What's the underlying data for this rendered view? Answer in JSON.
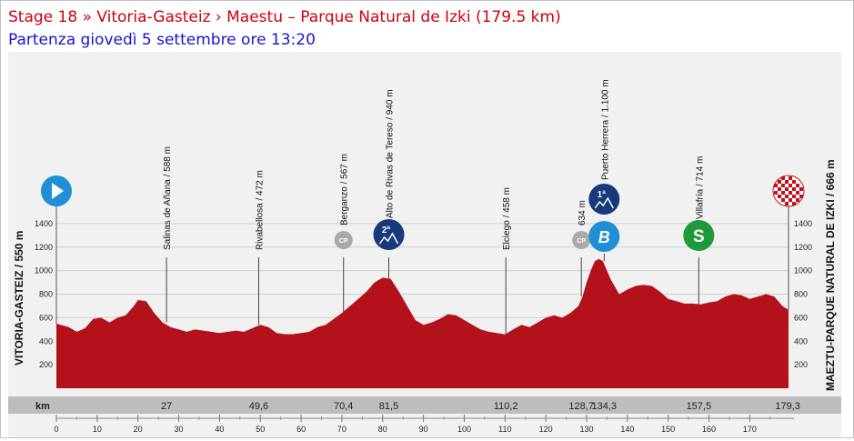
{
  "header": {
    "title": "Stage 18 » Vitoria-Gasteiz › Maestu – Parque Natural de Izki (179.5 km)",
    "subtitle": "Partenza giovedì 5 settembre ore 13:20"
  },
  "colors": {
    "title": "#d0000f",
    "subtitle": "#1a14cc",
    "profile_fill": "#b3121a",
    "profile_dark": "#8c0d14",
    "axis_bar": "#bdbdbd",
    "start_icon": "#1f8fd6",
    "cat1_icon": "#173a7a",
    "cat2_icon": "#173a7a",
    "bonus_icon": "#1f8fd6",
    "sprint_icon": "#1e9a3a",
    "cp_icon": "#a9a9a9"
  },
  "chart_data": {
    "type": "area",
    "xlabel": "km",
    "ylim": [
      0,
      1500
    ],
    "xlim": [
      0,
      179.5
    ],
    "yticks": [
      200,
      400,
      600,
      800,
      1000,
      1200,
      1400
    ],
    "xticks": [
      0,
      10,
      20,
      30,
      40,
      50,
      60,
      70,
      80,
      90,
      100,
      110,
      120,
      130,
      140,
      150,
      160,
      170
    ],
    "start_label": "VITORIA-GASTEIZ / 550 m",
    "finish_label": "MAEZTU-PARQUE NATURAL DE IZKI / 666 m",
    "profile": {
      "x": [
        0,
        3,
        5,
        7,
        9,
        11,
        13,
        15,
        17,
        19,
        20,
        22,
        24,
        26,
        28,
        30,
        32,
        34,
        36,
        38,
        40,
        42,
        44,
        46,
        48,
        50,
        52,
        54,
        56,
        58,
        60,
        62,
        64,
        66,
        68,
        70,
        72,
        74,
        76,
        78,
        80,
        82,
        84,
        86,
        88,
        90,
        92,
        94,
        96,
        98,
        100,
        102,
        104,
        106,
        108,
        110,
        112,
        114,
        116,
        118,
        120,
        122,
        124,
        126,
        128,
        129,
        130,
        131,
        132,
        133,
        134,
        135,
        136,
        137,
        138,
        140,
        142,
        144,
        146,
        148,
        150,
        152,
        154,
        156,
        158,
        160,
        162,
        164,
        166,
        168,
        170,
        172,
        174,
        176,
        178,
        179.5
      ],
      "y": [
        550,
        520,
        480,
        510,
        590,
        600,
        560,
        600,
        620,
        700,
        750,
        740,
        640,
        560,
        520,
        500,
        480,
        500,
        490,
        480,
        470,
        480,
        490,
        480,
        510,
        540,
        520,
        470,
        460,
        460,
        470,
        480,
        520,
        540,
        590,
        640,
        700,
        760,
        820,
        900,
        940,
        930,
        820,
        700,
        580,
        540,
        560,
        590,
        630,
        620,
        580,
        540,
        500,
        480,
        470,
        458,
        500,
        540,
        520,
        560,
        600,
        620,
        600,
        640,
        700,
        780,
        900,
        1000,
        1080,
        1100,
        1080,
        1000,
        920,
        860,
        800,
        840,
        870,
        880,
        870,
        820,
        760,
        740,
        720,
        720,
        714,
        730,
        740,
        780,
        800,
        790,
        760,
        780,
        800,
        780,
        700,
        666
      ]
    },
    "points": [
      {
        "km": 27,
        "km_label": "27",
        "name": "Salinas de Añana / 588 m",
        "icon": "none"
      },
      {
        "km": 49.6,
        "km_label": "49,6",
        "name": "Rivabellosa / 472 m",
        "icon": "none"
      },
      {
        "km": 70.4,
        "km_label": "70,4",
        "name": "Berganzo / 567 m",
        "icon": "cp-badge"
      },
      {
        "km": 81.5,
        "km_label": "81,5",
        "name": "Alto de Rivas de Tereso / 940 m",
        "icon": "cat2-climb-badge"
      },
      {
        "km": 110.2,
        "km_label": "110,2",
        "name": "Elciego / 458 m",
        "icon": "none"
      },
      {
        "km": 128.7,
        "km_label": "128,7",
        "name": "634 m",
        "icon": "cp-badge"
      },
      {
        "km": 134.3,
        "km_label": "134,3",
        "name": "Puerto Herrera / 1.100 m",
        "icon": "cat1-climb-badge"
      },
      {
        "km": 157.5,
        "km_label": "157,5",
        "name": "Villafría / 714 m",
        "icon": "sprint-badge"
      },
      {
        "km": 179.3,
        "km_label": "179,3",
        "name": "",
        "icon": "none"
      }
    ],
    "badges": {
      "cat2": "2ª",
      "cat1": "1ª",
      "bonus": "B",
      "sprint": "S",
      "cp": "CP"
    }
  }
}
